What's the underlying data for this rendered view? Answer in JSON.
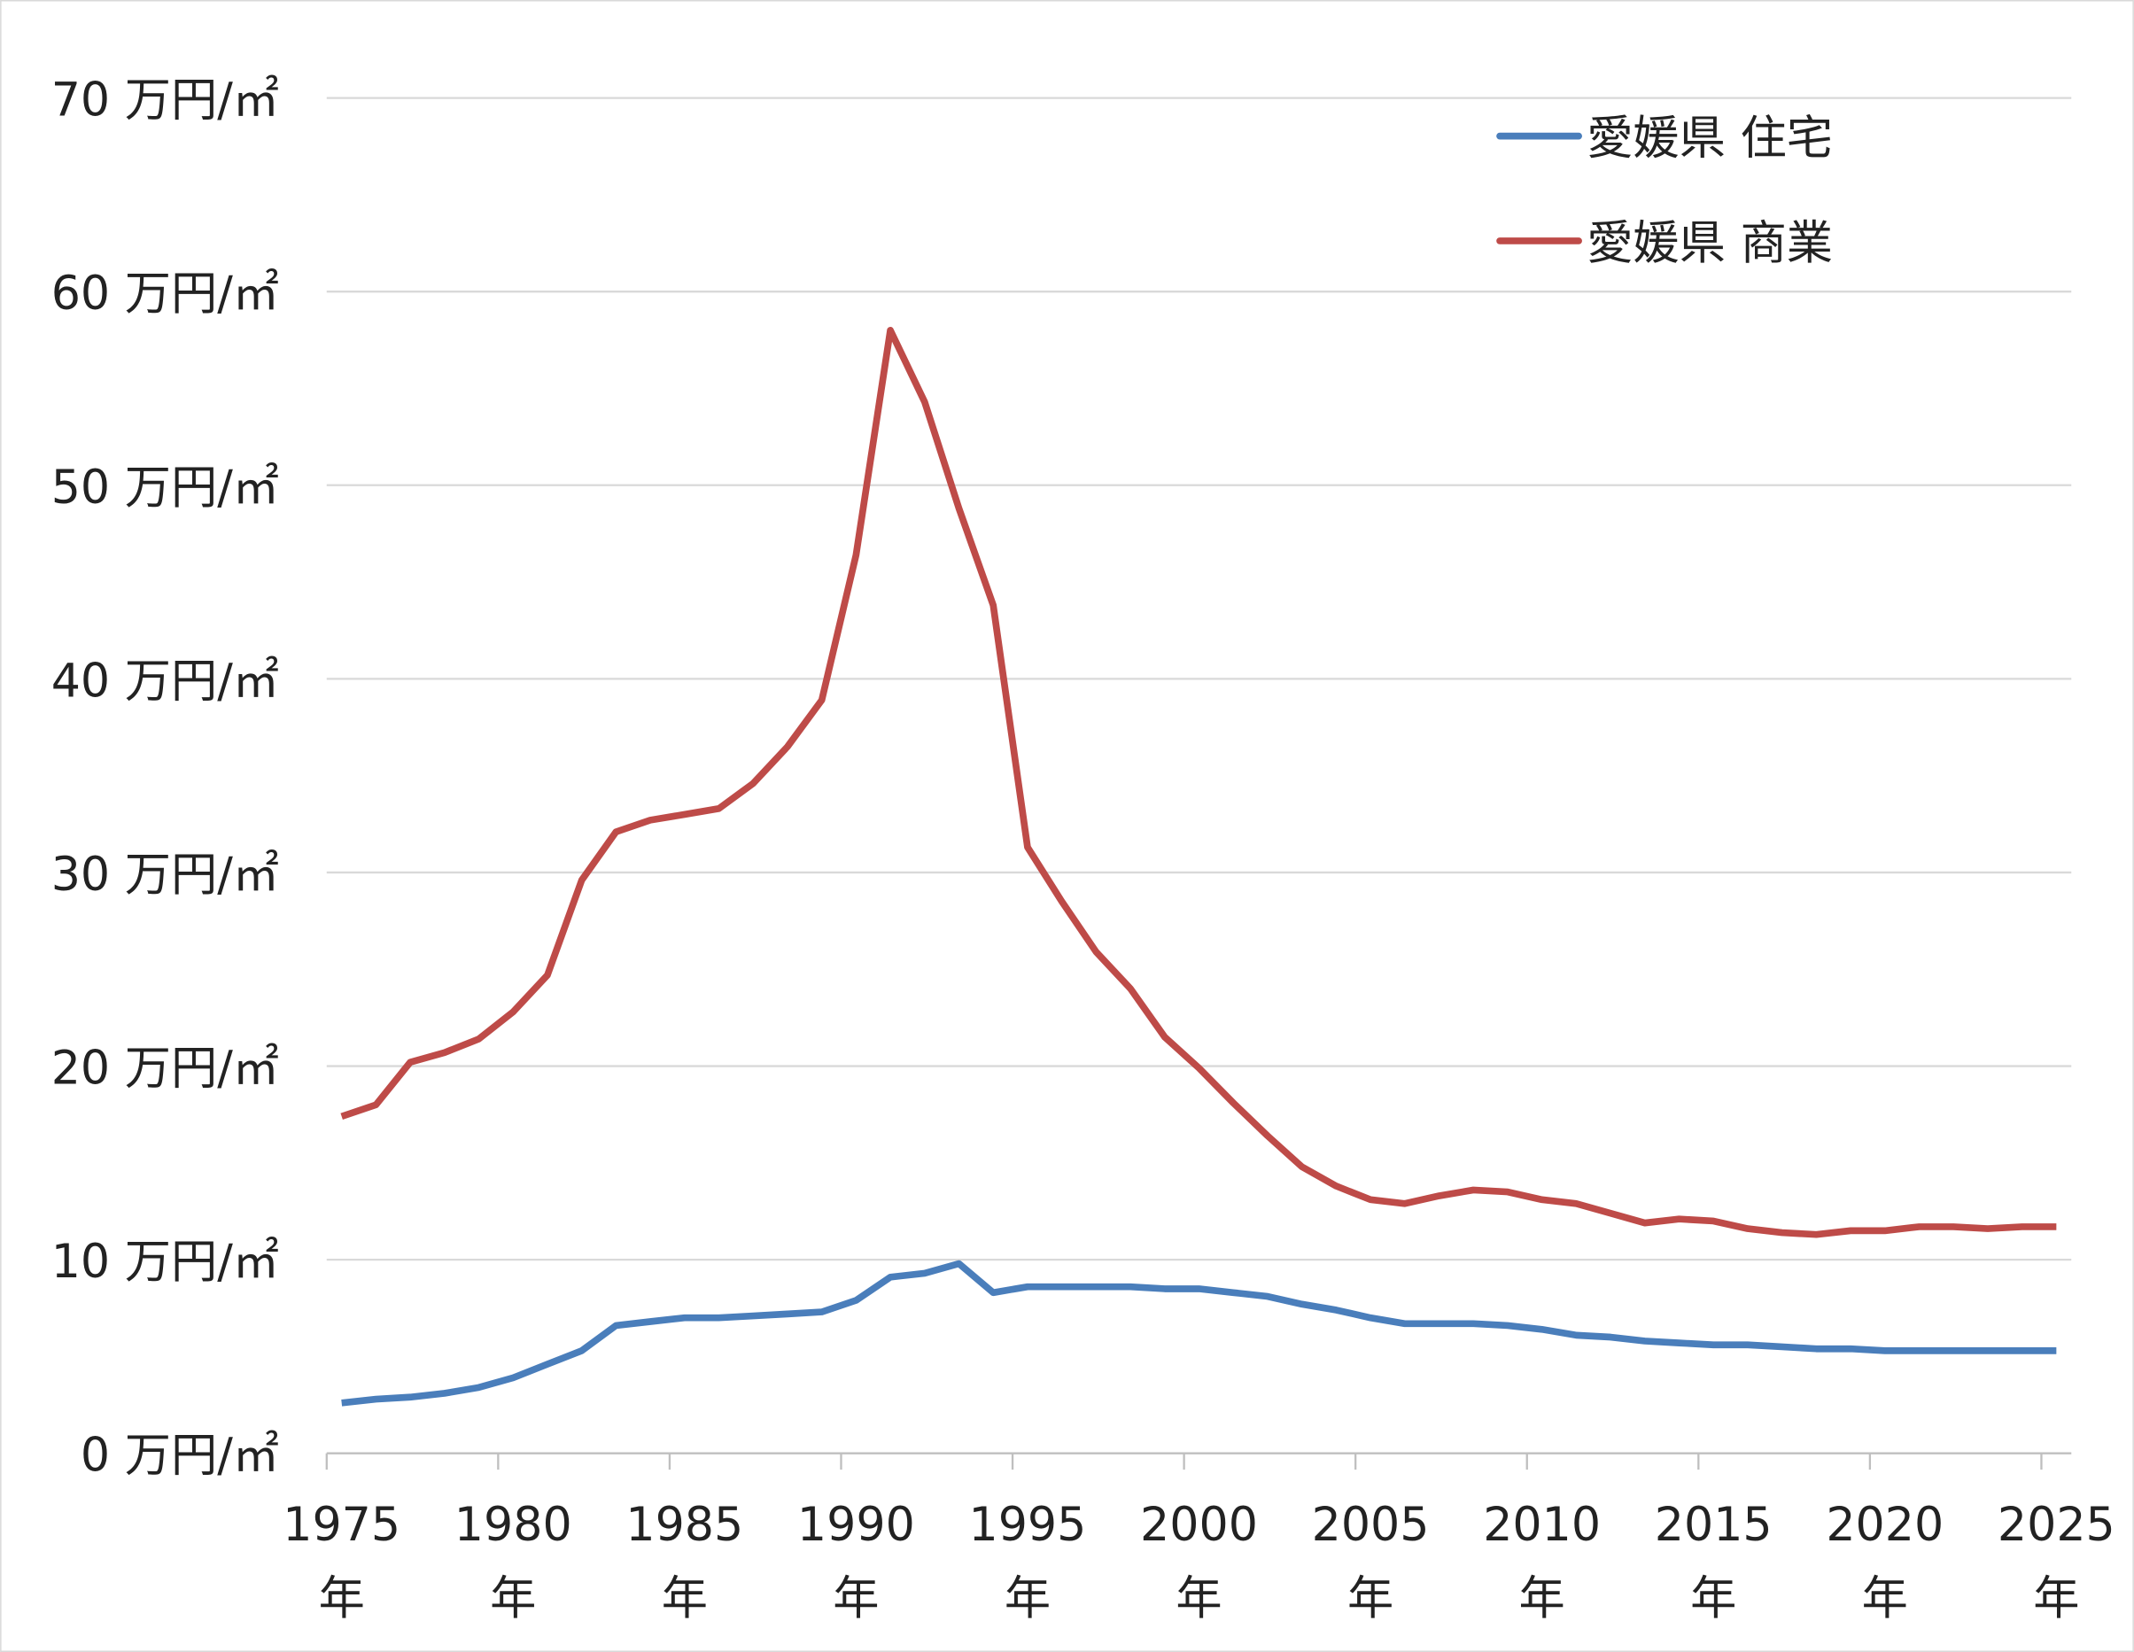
{
  "chart_data": {
    "type": "line",
    "title": "",
    "xlabel": "",
    "ylabel": "",
    "ylim": [
      0,
      70
    ],
    "yticks": [
      0,
      10,
      20,
      30,
      40,
      50,
      60,
      70
    ],
    "y_unit": "万円/㎡",
    "x_tick_years": [
      1975,
      1980,
      1985,
      1990,
      1995,
      2000,
      2005,
      2010,
      2015,
      2020,
      2025
    ],
    "x_unit": "年",
    "grid": true,
    "legend_position": "top-right",
    "x": [
      1975,
      1976,
      1977,
      1978,
      1979,
      1980,
      1981,
      1982,
      1983,
      1984,
      1985,
      1986,
      1987,
      1988,
      1989,
      1990,
      1991,
      1992,
      1993,
      1994,
      1995,
      1996,
      1997,
      1998,
      1999,
      2000,
      2001,
      2002,
      2003,
      2004,
      2005,
      2006,
      2007,
      2008,
      2009,
      2010,
      2011,
      2012,
      2013,
      2014,
      2015,
      2016,
      2017,
      2018,
      2019,
      2020,
      2021,
      2022,
      2023,
      2024,
      2025
    ],
    "series": [
      {
        "name": "愛媛県 住宅",
        "color": "#4a7ebb",
        "values": [
          2.6,
          2.8,
          2.9,
          3.1,
          3.4,
          3.9,
          4.6,
          5.3,
          6.6,
          6.8,
          7.0,
          7.0,
          7.1,
          7.2,
          7.3,
          7.9,
          9.1,
          9.3,
          9.8,
          8.3,
          8.6,
          8.6,
          8.6,
          8.6,
          8.5,
          8.5,
          8.3,
          8.1,
          7.7,
          7.4,
          7.0,
          6.7,
          6.7,
          6.7,
          6.6,
          6.4,
          6.1,
          6.0,
          5.8,
          5.7,
          5.6,
          5.6,
          5.5,
          5.4,
          5.4,
          5.3,
          5.3,
          5.3,
          5.3,
          5.3,
          5.3
        ]
      },
      {
        "name": "愛媛県 商業",
        "color": "#be4b48",
        "values": [
          17.4,
          18.0,
          20.2,
          20.7,
          21.4,
          22.8,
          24.7,
          29.6,
          32.1,
          32.7,
          33.0,
          33.3,
          34.6,
          36.5,
          38.9,
          46.4,
          58.0,
          54.3,
          48.8,
          43.8,
          31.3,
          28.5,
          25.9,
          24.0,
          21.5,
          19.9,
          18.1,
          16.4,
          14.8,
          13.8,
          13.1,
          12.9,
          13.3,
          13.6,
          13.5,
          13.1,
          12.9,
          12.4,
          11.9,
          12.1,
          12.0,
          11.6,
          11.4,
          11.3,
          11.5,
          11.5,
          11.7,
          11.7,
          11.6,
          11.7,
          11.7
        ]
      }
    ]
  }
}
